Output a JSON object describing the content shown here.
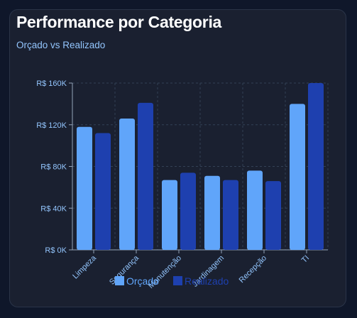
{
  "card": {
    "title": "Performance por Categoria",
    "subtitle": "Orçado vs Realizado"
  },
  "colors": {
    "background": "#0f172a",
    "card": "#1a2030",
    "orcado": "#60a5fa",
    "realizado": "#1e40af",
    "axis_text": "#93c5fd",
    "grid": "#334155"
  },
  "chart_data": {
    "type": "bar",
    "categories": [
      "Limpeza",
      "Segurança",
      "Manutenção",
      "Jardinagem",
      "Recepção",
      "TI"
    ],
    "series": [
      {
        "name": "Orçado",
        "values": [
          118000,
          126000,
          67000,
          71000,
          76000,
          140000
        ]
      },
      {
        "name": "Realizado",
        "values": [
          112000,
          141000,
          74000,
          67000,
          66000,
          160000
        ]
      }
    ],
    "ylim": [
      0,
      160000
    ],
    "yticks": [
      0,
      40000,
      80000,
      120000,
      160000
    ],
    "ytick_labels": [
      "R$ 0K",
      "R$ 40K",
      "R$ 80K",
      "R$ 120K",
      "R$ 160K"
    ],
    "grid": true,
    "legend_position": "bottom"
  }
}
